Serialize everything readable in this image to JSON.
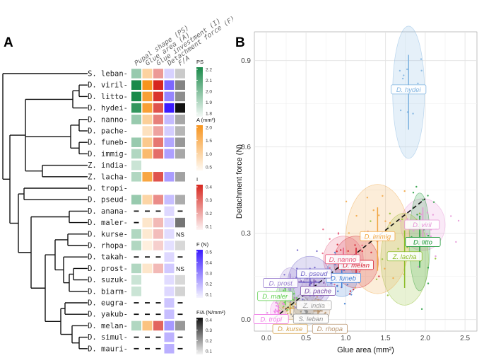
{
  "panel_a": {
    "letter": "A",
    "column_headers": [
      "Pupal shape (PS)",
      "Glue area (A)",
      "Glue investment (I)",
      "Detachment force (F)",
      "F/A"
    ],
    "species": [
      "S. leban",
      "D. viril",
      "D. litto",
      "D. hydei",
      "D. nanno",
      "D. pache",
      "D. funeb",
      "D. immig",
      "Z. india",
      "Z. lacha",
      "D. tropi",
      "D. pseud",
      "D. anana",
      "D. maler",
      "D. kurse",
      "D. rhopa",
      "D. takah",
      "D. prost",
      "D. suzuk",
      "D. biarm",
      "D. eugra",
      "D. yakub",
      "D. melan",
      "D. simul",
      "D. mauri"
    ],
    "heat_rows": [
      {
        "ps": 1.95,
        "a": 0.95,
        "i": 0.22,
        "f": 0.07,
        "fa": 0.08
      },
      {
        "ps": 2.2,
        "a": 2.0,
        "i": 0.48,
        "f": 0.35,
        "fa": 0.22
      },
      {
        "ps": 2.22,
        "a": 1.8,
        "i": 0.45,
        "f": 0.27,
        "fa": 0.2
      },
      {
        "ps": 2.15,
        "a": 1.8,
        "i": 0.38,
        "f": 0.55,
        "fa": 0.45
      },
      {
        "ps": 1.95,
        "a": 1.0,
        "i": 0.28,
        "f": 0.13,
        "fa": 0.15
      },
      {
        "ps": null,
        "a": 0.7,
        "i": 0.2,
        "f": 0.08,
        "fa": 0.12
      },
      {
        "ps": 1.95,
        "a": 1.1,
        "i": 0.3,
        "f": 0.18,
        "fa": 0.18
      },
      {
        "ps": 1.9,
        "a": 1.35,
        "i": 0.32,
        "f": 0.2,
        "fa": 0.15
      },
      {
        "ps": 1.85,
        "a": null,
        "i": null,
        "f": null,
        "fa": null
      },
      {
        "ps": 1.9,
        "a": 1.7,
        "i": 0.38,
        "f": 0.21,
        "fa": 0.16
      },
      {
        "ps": null,
        "a": null,
        "i": null,
        "f": null,
        "fa": null
      },
      {
        "ps": 1.95,
        "a": 0.9,
        "i": 0.25,
        "f": 0.12,
        "fa": 0.14
      },
      {
        "ps": null,
        "a": null,
        "i": null,
        "f": 0.05,
        "fa": null
      },
      {
        "ps": null,
        "a": 0.6,
        "i": 0.15,
        "f": 0.05,
        "fa": 0.25
      },
      {
        "ps": 1.9,
        "a": 0.55,
        "i": 0.14,
        "f": 0.04,
        "fa": null
      },
      {
        "ps": 1.9,
        "a": 0.45,
        "i": 0.1,
        "f": 0.03,
        "fa": 0.05
      },
      {
        "ps": null,
        "a": null,
        "i": null,
        "f": 0.05,
        "fa": null
      },
      {
        "ps": 1.9,
        "a": 0.6,
        "i": 0.15,
        "f": 0.09,
        "fa": null
      },
      {
        "ps": 1.85,
        "a": null,
        "i": null,
        "f": 0.04,
        "fa": 0.05
      },
      {
        "ps": 1.85,
        "a": null,
        "i": null,
        "f": 0.05,
        "fa": 0.06
      },
      {
        "ps": null,
        "a": null,
        "i": null,
        "f": 0.1,
        "fa": null
      },
      {
        "ps": null,
        "a": null,
        "i": null,
        "f": 0.12,
        "fa": null
      },
      {
        "ps": 1.9,
        "a": 1.2,
        "i": 0.34,
        "f": 0.22,
        "fa": 0.18
      },
      {
        "ps": null,
        "a": null,
        "i": null,
        "f": 0.15,
        "fa": null
      },
      {
        "ps": null,
        "a": null,
        "i": null,
        "f": 0.16,
        "fa": null
      }
    ],
    "dash_cells": [
      [
        12,
        0
      ],
      [
        12,
        1
      ],
      [
        12,
        2
      ],
      [
        12,
        4
      ],
      [
        13,
        0
      ],
      [
        16,
        0
      ],
      [
        16,
        1
      ],
      [
        16,
        2
      ],
      [
        16,
        4
      ],
      [
        20,
        0
      ],
      [
        20,
        1
      ],
      [
        20,
        2
      ],
      [
        20,
        4
      ],
      [
        21,
        0
      ],
      [
        21,
        1
      ],
      [
        21,
        2
      ],
      [
        21,
        4
      ],
      [
        23,
        0
      ],
      [
        23,
        1
      ],
      [
        23,
        2
      ],
      [
        23,
        4
      ],
      [
        24,
        0
      ],
      [
        24,
        1
      ],
      [
        24,
        2
      ],
      [
        24,
        4
      ]
    ],
    "ns_rows": [
      14,
      17
    ],
    "ns_label": "NS",
    "legends": [
      {
        "title": "PS",
        "ticks": [
          "2.2",
          "2.1",
          "2.0",
          "1.9",
          "1.8"
        ],
        "color": "#1a8a4a",
        "min": 1.8,
        "max": 2.2
      },
      {
        "title": "A (mm²)",
        "ticks": [
          "2.0",
          "1.5",
          "1.0",
          "0.5"
        ],
        "color": "#f7941d",
        "min": 0.4,
        "max": 2.0
      },
      {
        "title": "I",
        "ticks": [
          "0.4",
          "0.3",
          "0.2",
          "0.1"
        ],
        "color": "#d7261e",
        "min": 0.05,
        "max": 0.48
      },
      {
        "title": "F (N)",
        "ticks": [
          "0.5",
          "0.4",
          "0.3",
          "0.2",
          "0.1"
        ],
        "color": "#3b1bff",
        "min": 0.02,
        "max": 0.55
      },
      {
        "title": "F/A (N/mm²)",
        "ticks": [
          "0.4",
          "0.3",
          "0.2",
          "0.1"
        ],
        "color": "#111111",
        "min": 0.03,
        "max": 0.45
      }
    ]
  },
  "chart_data": {
    "letter": "B",
    "type": "scatter",
    "title": "",
    "xlabel": "Glue area (mm²)",
    "ylabel": "Detachment force (N)",
    "xlim": [
      -0.15,
      2.65
    ],
    "ylim": [
      -0.04,
      1.0
    ],
    "x_ticks": [
      0.0,
      0.5,
      1.0,
      1.5,
      2.0,
      2.5
    ],
    "x_tick_labels": [
      "0.0",
      "0.5",
      "1.0",
      "1.5",
      "2.0",
      "2.5"
    ],
    "y_ticks": [
      0.0,
      0.3,
      0.6,
      0.9
    ],
    "y_tick_labels": [
      "0.0",
      "0.3",
      "0.6",
      "0.9"
    ],
    "grid": true,
    "trend_line": {
      "x": [
        0.1,
        2.0
      ],
      "y": [
        0.005,
        0.42
      ],
      "style": "dashed"
    },
    "species": [
      {
        "name": "D. hydei",
        "color": "#7fb3e0",
        "mx": 1.79,
        "my": 0.79,
        "sx": 0.12,
        "sy": 0.13,
        "rx": 0.2,
        "ry": 0.23,
        "lx": 1.79,
        "ly": 0.8
      },
      {
        "name": "D. viril",
        "color": "#e592d6",
        "mx": 1.97,
        "my": 0.33,
        "sx": 0.09,
        "sy": 0.06,
        "rx": 0.28,
        "ry": 0.09,
        "lx": 1.96,
        "ly": 0.33
      },
      {
        "name": "D. litto",
        "color": "#1f9a3a",
        "mx": 1.93,
        "my": 0.27,
        "sx": 0.08,
        "sy": 0.09,
        "rx": 0.13,
        "ry": 0.17,
        "lx": 1.97,
        "ly": 0.27
      },
      {
        "name": "Z. lacha",
        "color": "#8dbd2a",
        "mx": 1.74,
        "my": 0.21,
        "sx": 0.15,
        "sy": 0.1,
        "rx": 0.3,
        "ry": 0.16,
        "lx": 1.74,
        "ly": 0.22
      },
      {
        "name": "D. immig",
        "color": "#f2a541",
        "mx": 1.4,
        "my": 0.28,
        "sx": 0.11,
        "sy": 0.11,
        "rx": 0.4,
        "ry": 0.19,
        "lx": 1.4,
        "ly": 0.29
      },
      {
        "name": "D. melan",
        "color": "#d41d2e",
        "mx": 1.13,
        "my": 0.2,
        "sx": 0.12,
        "sy": 0.05,
        "rx": 0.28,
        "ry": 0.09,
        "lx": 1.13,
        "ly": 0.19
      },
      {
        "name": "D. nanno",
        "color": "#e75a7c",
        "mx": 0.97,
        "my": 0.21,
        "sx": 0.09,
        "sy": 0.04,
        "rx": 0.25,
        "ry": 0.08,
        "lx": 0.96,
        "ly": 0.21
      },
      {
        "name": "D. funeb",
        "color": "#3a7bd5",
        "mx": 0.95,
        "my": 0.15,
        "sx": 0.07,
        "sy": 0.04,
        "rx": 0.2,
        "ry": 0.07,
        "lx": 0.97,
        "ly": 0.145
      },
      {
        "name": "D. pseud",
        "color": "#6c5fc7",
        "mx": 0.55,
        "my": 0.13,
        "sx": 0.13,
        "sy": 0.05,
        "rx": 0.28,
        "ry": 0.09,
        "lx": 0.6,
        "ly": 0.16
      },
      {
        "name": "D. pache",
        "color": "#7b4fa8",
        "mx": 0.6,
        "my": 0.11,
        "sx": 0.07,
        "sy": 0.03,
        "rx": 0.15,
        "ry": 0.05,
        "lx": 0.65,
        "ly": 0.1
      },
      {
        "name": "D. prost",
        "color": "#9a7fd0",
        "mx": 0.3,
        "my": 0.12,
        "sx": 0.06,
        "sy": 0.04,
        "rx": 0.14,
        "ry": 0.06,
        "lx": 0.18,
        "ly": 0.127
      },
      {
        "name": "D. maler",
        "color": "#5fcf4e",
        "mx": 0.24,
        "my": 0.08,
        "sx": 0.05,
        "sy": 0.03,
        "rx": 0.12,
        "ry": 0.05,
        "lx": 0.11,
        "ly": 0.082
      },
      {
        "name": "Z. india",
        "color": "#a0a0a0",
        "mx": 0.48,
        "my": 0.05,
        "sx": 0.06,
        "sy": 0.02,
        "rx": 0.15,
        "ry": 0.04,
        "lx": 0.6,
        "ly": 0.05
      },
      {
        "name": "D. tropi",
        "color": "#ef7ae6",
        "mx": 0.15,
        "my": 0.03,
        "sx": 0.04,
        "sy": 0.02,
        "rx": 0.1,
        "ry": 0.04,
        "lx": 0.06,
        "ly": 0.002
      },
      {
        "name": "D. kurse",
        "color": "#d4a14a",
        "mx": 0.3,
        "my": 0.04,
        "sx": 0.06,
        "sy": 0.02,
        "rx": 0.15,
        "ry": 0.04,
        "lx": 0.3,
        "ly": -0.032
      },
      {
        "name": "S. leban",
        "color": "#8f8f8f",
        "mx": 0.5,
        "my": 0.02,
        "sx": 0.06,
        "sy": 0.02,
        "rx": 0.16,
        "ry": 0.04,
        "lx": 0.56,
        "ly": 0.003
      },
      {
        "name": "D. rhopa",
        "color": "#b8926a",
        "mx": 0.65,
        "my": 0.03,
        "sx": 0.06,
        "sy": 0.02,
        "rx": 0.15,
        "ry": 0.04,
        "lx": 0.8,
        "ly": -0.032
      }
    ]
  }
}
